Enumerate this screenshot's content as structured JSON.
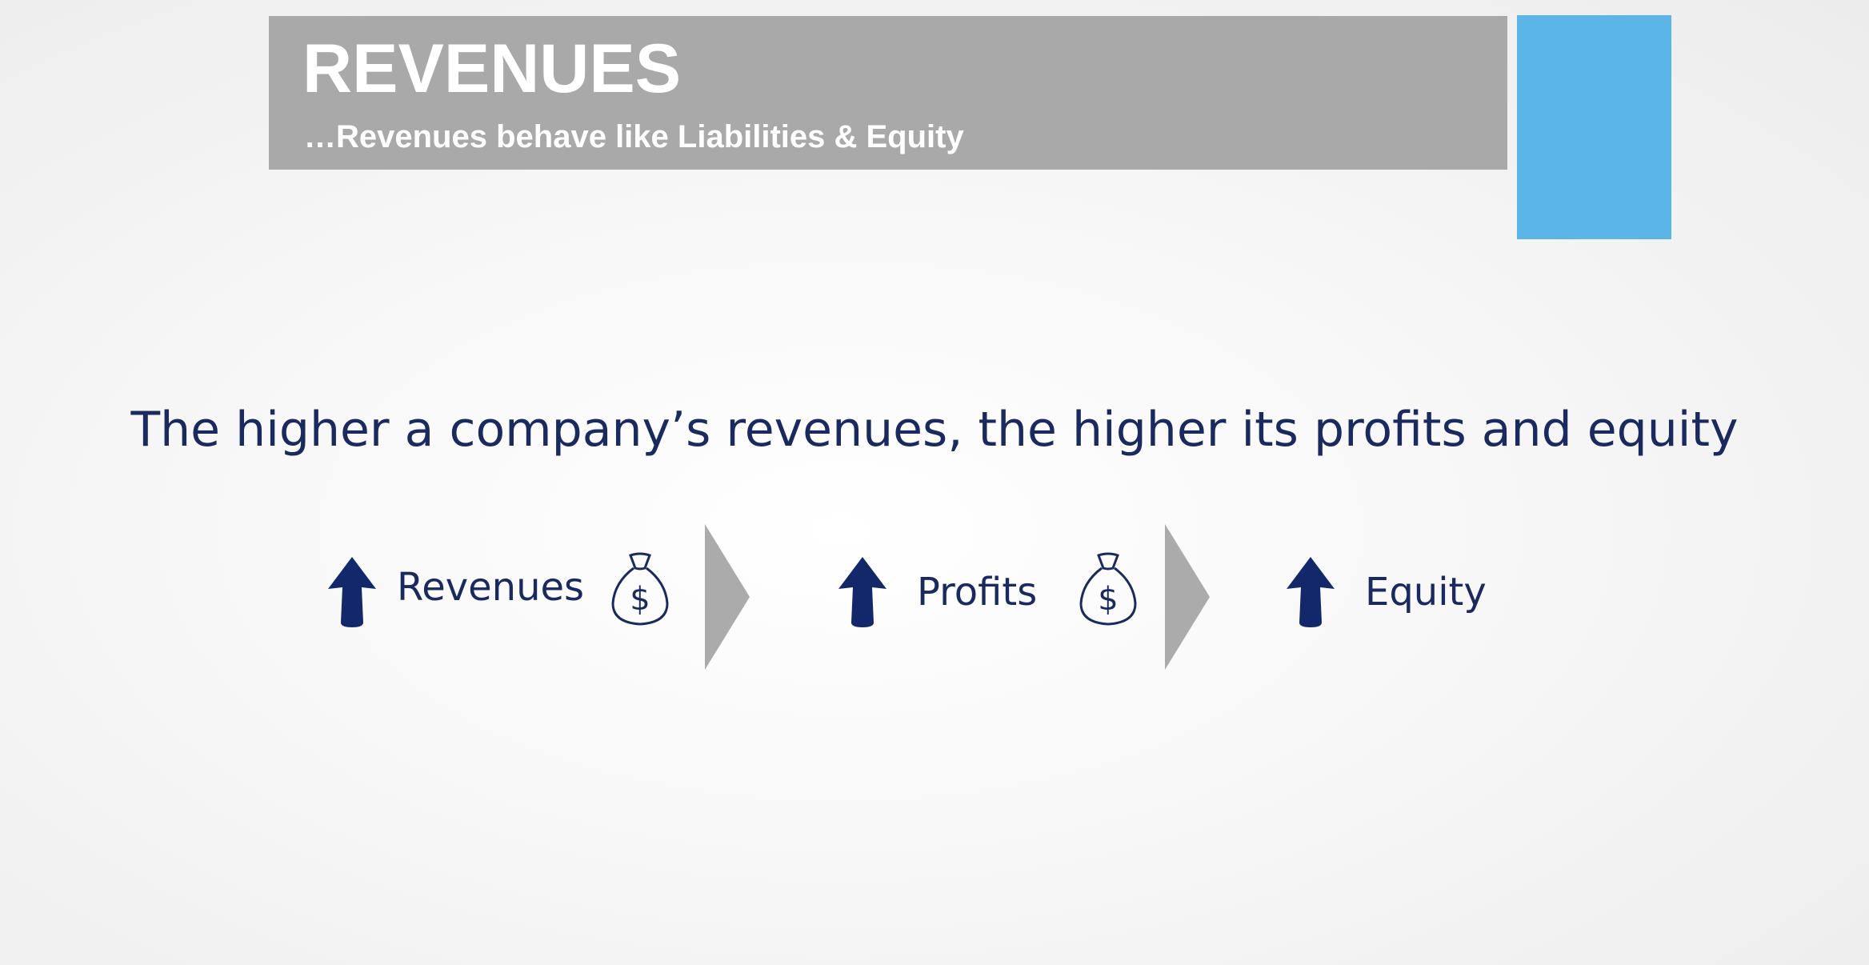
{
  "header": {
    "title": "REVENUES",
    "subtitle": "…Revenues behave like Liabilities & Equity"
  },
  "statement": "The higher a company’s revenues, the higher its profits and equity",
  "flow": {
    "steps": [
      {
        "label": "Revenues",
        "direction_icon": "up-arrow-icon",
        "has_money_bag": true
      },
      {
        "label": "Profits",
        "direction_icon": "up-arrow-icon",
        "has_money_bag": true
      },
      {
        "label": "Equity",
        "direction_icon": "up-arrow-icon",
        "has_money_bag": false
      }
    ],
    "money_icon": "money-bag-icon",
    "connector_icon": "chevron-right-icon"
  },
  "colors": {
    "header_bar": "#a9a9a9",
    "accent": "#5bb5e6",
    "text_navy": "#1a2a5e",
    "chevron_gray": "#ababab"
  }
}
